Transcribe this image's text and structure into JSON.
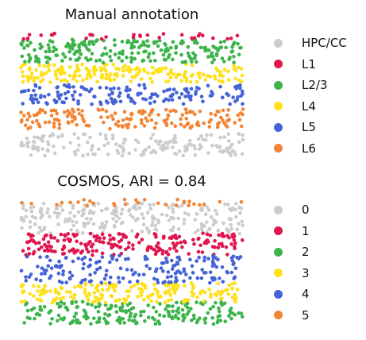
{
  "chart_data": [
    {
      "type": "scatter",
      "title": "Manual annotation",
      "legend": "right",
      "grid": false,
      "series": [
        {
          "name": "HPC/CC",
          "color": "#cccccc",
          "y_range": [
            0.0,
            0.18
          ],
          "count": 170
        },
        {
          "name": "L6",
          "color": "#f28535",
          "y_range": [
            0.22,
            0.38
          ],
          "count": 170
        },
        {
          "name": "L5",
          "color": "#4563d6",
          "y_range": [
            0.42,
            0.58
          ],
          "count": 160
        },
        {
          "name": "L4",
          "color": "#ffe01a",
          "y_range": [
            0.6,
            0.75
          ],
          "count": 190
        },
        {
          "name": "L2/3",
          "color": "#3cb44b",
          "y_range": [
            0.76,
            0.95
          ],
          "count": 230
        },
        {
          "name": "L1",
          "color": "#e0174d",
          "y_range": [
            0.95,
            1.0
          ],
          "count": 30
        }
      ],
      "legend_order": [
        "HPC/CC",
        "L1",
        "L2/3",
        "L4",
        "L5",
        "L6"
      ]
    },
    {
      "type": "scatter",
      "title": "COSMOS, ARI = 0.84",
      "legend": "right",
      "grid": false,
      "series": [
        {
          "name": "0",
          "color": "#cccccc",
          "y_range": [
            0.72,
            0.97
          ],
          "count": 230
        },
        {
          "name": "1",
          "color": "#e0174d",
          "y_range": [
            0.55,
            0.73
          ],
          "count": 210
        },
        {
          "name": "2",
          "color": "#3cb44b",
          "y_range": [
            0.0,
            0.18
          ],
          "count": 200
        },
        {
          "name": "3",
          "color": "#ffe01a",
          "y_range": [
            0.17,
            0.33
          ],
          "count": 190
        },
        {
          "name": "4",
          "color": "#4563d6",
          "y_range": [
            0.33,
            0.55
          ],
          "count": 180
        },
        {
          "name": "5",
          "color": "#f28535",
          "y_range": [
            0.95,
            1.0
          ],
          "count": 30
        }
      ],
      "legend_order": [
        "0",
        "1",
        "2",
        "3",
        "4",
        "5"
      ]
    }
  ]
}
